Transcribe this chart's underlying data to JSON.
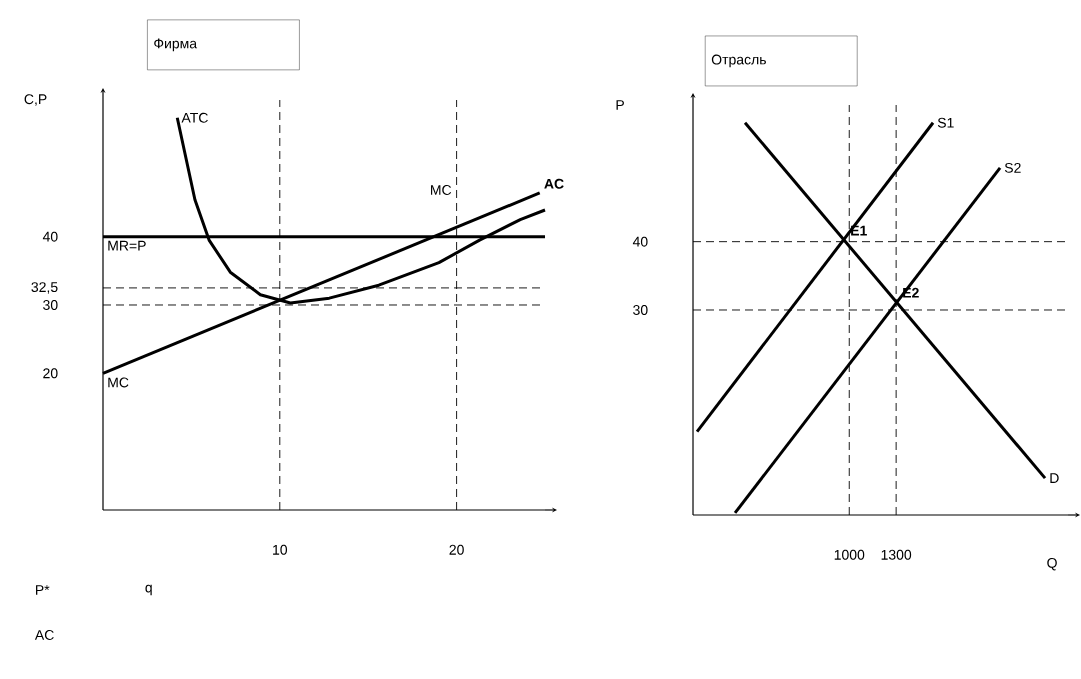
{
  "chart_data": [
    {
      "type": "line",
      "title": "Фирма",
      "ylabel": "C,P",
      "xlim": [
        0,
        25
      ],
      "ylim": [
        0,
        60
      ],
      "xticks": [
        10,
        20
      ],
      "yticks": [
        20,
        30,
        {
          "value": 32.5,
          "label": "32,5"
        },
        40
      ],
      "legend": false,
      "marker": "none",
      "series": [
        {
          "name": "ATC",
          "color": "#000000",
          "x": [
            4.2,
            5.2,
            6.0,
            7.2,
            8.9,
            10.6,
            12.8,
            15.6,
            19,
            21.3,
            23.6,
            25
          ],
          "values": [
            57.4,
            45.4,
            39.5,
            34.8,
            31.5,
            30.3,
            31,
            32.9,
            36.2,
            39.5,
            42.5,
            43.9
          ]
        },
        {
          "name": "MC",
          "color": "#000000",
          "x": [
            0,
            24.7
          ],
          "values": [
            20,
            46.4
          ]
        },
        {
          "name": "MR=P",
          "color": "#000000",
          "x": [
            0,
            25
          ],
          "values": [
            40,
            40
          ]
        }
      ],
      "ref_lines": [
        {
          "axis": "y",
          "value": 32.5,
          "line_style": "dashed"
        },
        {
          "axis": "y",
          "value": 30,
          "line_style": "dashed"
        },
        {
          "axis": "x",
          "value": 10,
          "line_style": "dashed"
        },
        {
          "axis": "x",
          "value": 20,
          "line_style": "dashed"
        }
      ],
      "annotations": [
        {
          "text": "AC",
          "x": 24.7,
          "y": 46.4
        },
        "MC",
        "P*",
        "q",
        "AC"
      ]
    },
    {
      "type": "line",
      "title": "Отрасль",
      "ylabel": "P",
      "xlabel": "Q",
      "xlim": [
        0,
        2400
      ],
      "ylim": [
        0,
        60
      ],
      "xticks": [
        1000,
        1300
      ],
      "yticks": [
        30,
        40
      ],
      "legend": false,
      "marker": "none",
      "series": [
        {
          "name": "S1",
          "color": "#000000",
          "x": [
            26,
            1536
          ],
          "values": [
            12.2,
            57.4
          ]
        },
        {
          "name": "S2",
          "color": "#000000",
          "x": [
            269,
            1965
          ],
          "values": [
            0.3,
            50.8
          ]
        },
        {
          "name": "D",
          "color": "#000000",
          "x": [
            333,
            2253
          ],
          "values": [
            57.4,
            5.4
          ]
        }
      ],
      "ref_lines": [
        {
          "axis": "y",
          "value": 40,
          "line_style": "dashed"
        },
        {
          "axis": "y",
          "value": 30,
          "line_style": "dashed"
        },
        {
          "axis": "x",
          "value": 1000,
          "line_style": "dashed"
        },
        {
          "axis": "x",
          "value": 1300,
          "line_style": "dashed"
        }
      ],
      "annotations": [
        {
          "text": "E1",
          "x": 979,
          "y": 40.3
        },
        {
          "text": "E2",
          "x": 1312,
          "y": 31.2
        }
      ]
    }
  ]
}
